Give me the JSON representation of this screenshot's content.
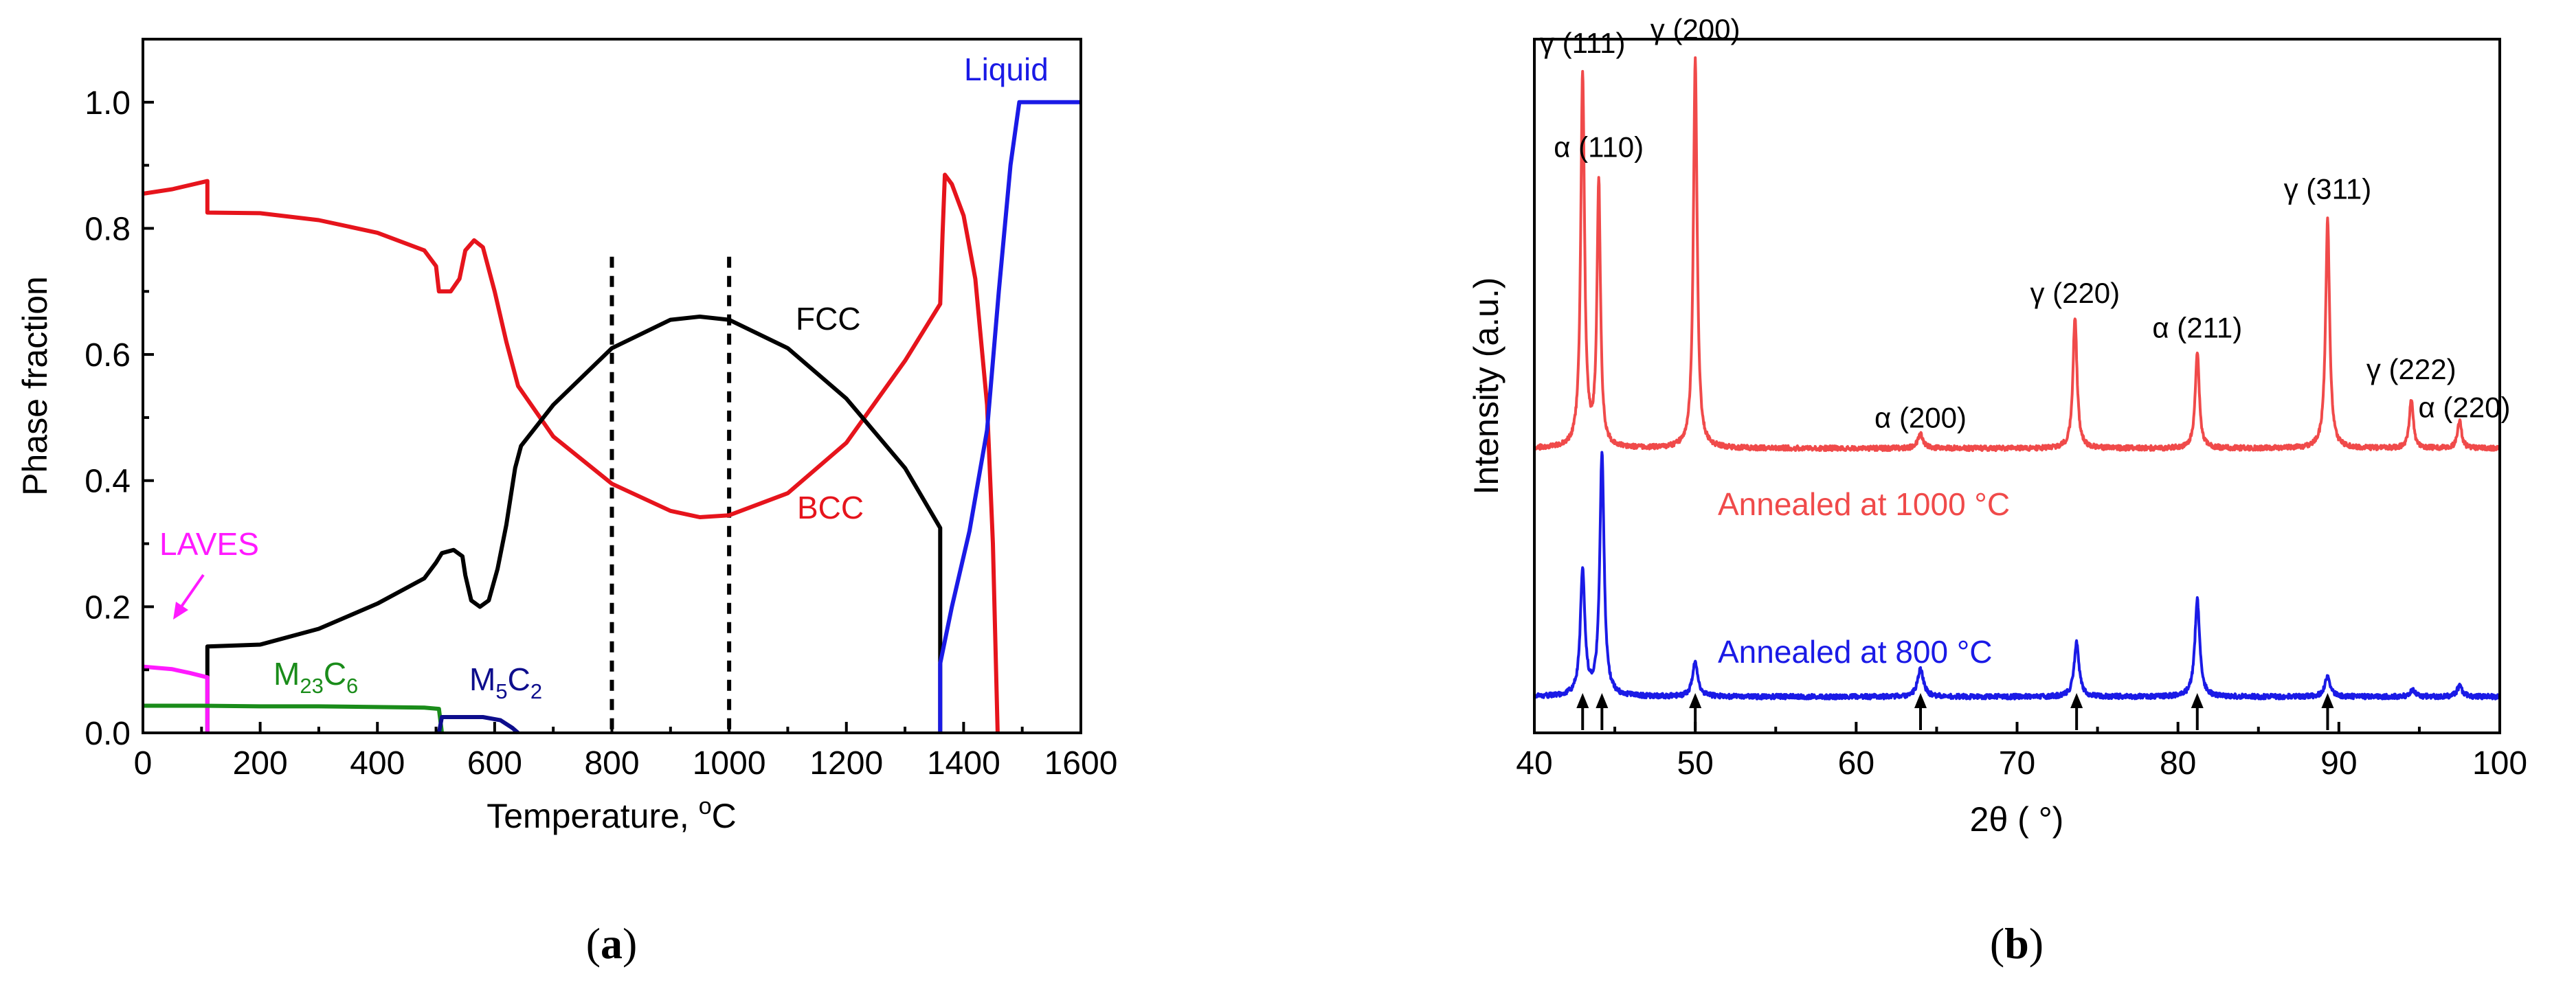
{
  "chart_data": [
    {
      "panel": "(a)",
      "panel_label": {
        "open": "(",
        "letter": "a",
        "close": ")"
      },
      "type": "line",
      "title": "",
      "xlabel": {
        "text": "Temperature, ",
        "sup": "o",
        "after": "C"
      },
      "ylabel": "Phase fraction",
      "xlim": [
        0,
        1600
      ],
      "ylim": [
        0,
        1.1
      ],
      "xticks": [
        0,
        200,
        400,
        600,
        800,
        1000,
        1200,
        1400,
        1600
      ],
      "yticks": [
        "0.0",
        "0.2",
        "0.4",
        "0.6",
        "0.8",
        "1.0"
      ],
      "ytick_values": [
        0,
        0.2,
        0.4,
        0.6,
        0.8,
        1.0
      ],
      "series": [
        {
          "name": "BCC",
          "color": "#e6141c",
          "points": [
            [
              0,
              0.855
            ],
            [
              50,
              0.862
            ],
            [
              110,
              0.875
            ],
            [
              110,
              0.825
            ],
            [
              200,
              0.824
            ],
            [
              300,
              0.813
            ],
            [
              400,
              0.793
            ],
            [
              480,
              0.765
            ],
            [
              500,
              0.74
            ],
            [
              505,
              0.7
            ],
            [
              525,
              0.7
            ],
            [
              540,
              0.72
            ],
            [
              550,
              0.765
            ],
            [
              565,
              0.781
            ],
            [
              580,
              0.77
            ],
            [
              600,
              0.7
            ],
            [
              620,
              0.62
            ],
            [
              640,
              0.55
            ],
            [
              700,
              0.47
            ],
            [
              800,
              0.395
            ],
            [
              900,
              0.352
            ],
            [
              950,
              0.342
            ],
            [
              1000,
              0.345
            ],
            [
              1100,
              0.38
            ],
            [
              1200,
              0.46
            ],
            [
              1300,
              0.59
            ],
            [
              1360,
              0.68
            ],
            [
              1360,
              0.68
            ],
            [
              1364,
              0.79
            ],
            [
              1368,
              0.885
            ],
            [
              1380,
              0.87
            ],
            [
              1400,
              0.82
            ],
            [
              1420,
              0.72
            ],
            [
              1440,
              0.52
            ],
            [
              1450,
              0.3
            ],
            [
              1458,
              0.0
            ]
          ]
        },
        {
          "name": "FCC",
          "color": "#000000",
          "points": [
            [
              110,
              0.0
            ],
            [
              110,
              0.137
            ],
            [
              200,
              0.14
            ],
            [
              300,
              0.165
            ],
            [
              400,
              0.205
            ],
            [
              480,
              0.245
            ],
            [
              500,
              0.27
            ],
            [
              510,
              0.285
            ],
            [
              530,
              0.29
            ],
            [
              545,
              0.28
            ],
            [
              550,
              0.25
            ],
            [
              560,
              0.21
            ],
            [
              575,
              0.2
            ],
            [
              590,
              0.21
            ],
            [
              605,
              0.26
            ],
            [
              620,
              0.33
            ],
            [
              635,
              0.42
            ],
            [
              645,
              0.455
            ],
            [
              700,
              0.52
            ],
            [
              800,
              0.61
            ],
            [
              900,
              0.655
            ],
            [
              950,
              0.66
            ],
            [
              1000,
              0.655
            ],
            [
              1100,
              0.61
            ],
            [
              1200,
              0.53
            ],
            [
              1300,
              0.42
            ],
            [
              1360,
              0.325
            ],
            [
              1360,
              0.0
            ]
          ]
        },
        {
          "name": "Liquid",
          "color": "#1a1ae6",
          "points": [
            [
              1360,
              0.0
            ],
            [
              1360,
              0.11
            ],
            [
              1380,
              0.2
            ],
            [
              1410,
              0.32
            ],
            [
              1440,
              0.48
            ],
            [
              1460,
              0.7
            ],
            [
              1480,
              0.9
            ],
            [
              1495,
              1.0
            ],
            [
              1600,
              1.0
            ]
          ]
        },
        {
          "name": "LAVES",
          "color": "#ff1aff",
          "points": [
            [
              0,
              0.105
            ],
            [
              50,
              0.101
            ],
            [
              80,
              0.095
            ],
            [
              110,
              0.088
            ],
            [
              110,
              0.0
            ]
          ]
        },
        {
          "name": "M23C6",
          "color": "#1a8c1a",
          "points": [
            [
              0,
              0.043
            ],
            [
              100,
              0.043
            ],
            [
              200,
              0.042
            ],
            [
              300,
              0.042
            ],
            [
              400,
              0.041
            ],
            [
              480,
              0.04
            ],
            [
              505,
              0.038
            ],
            [
              510,
              0.0
            ]
          ]
        },
        {
          "name": "M5C2",
          "color": "#0d0d8c",
          "points": [
            [
              505,
              0.0
            ],
            [
              510,
              0.025
            ],
            [
              580,
              0.025
            ],
            [
              610,
              0.02
            ],
            [
              630,
              0.008
            ],
            [
              640,
              0.0
            ]
          ]
        }
      ],
      "vlines": [
        800,
        1000
      ],
      "annotations": {
        "FCC": "FCC",
        "BCC": "BCC",
        "Liquid": "Liquid",
        "LAVES": "LAVES",
        "M23C6": {
          "base": "M",
          "sub": "23",
          "mid": "C",
          "sub2": "6"
        },
        "M5C2": {
          "base": "M",
          "sub": "5",
          "mid": "C",
          "sub2": "2"
        }
      }
    },
    {
      "panel": "(b)",
      "panel_label": {
        "open": "(",
        "letter": "b",
        "close": ")"
      },
      "type": "line",
      "title": "",
      "xlabel": "2θ ( °)",
      "ylabel": "Intensity (a.u.)",
      "xlim": [
        40,
        100
      ],
      "xticks": [
        40,
        50,
        60,
        70,
        80,
        90,
        100
      ],
      "yticks": [],
      "series": [
        {
          "name": "Annealed at 1000 °C",
          "color": "#f04a4a",
          "baseline": 0.41,
          "peaks": [
            [
              43.0,
              0.54,
              0.14
            ],
            [
              44.0,
              0.38,
              0.13
            ],
            [
              50.0,
              0.56,
              0.14
            ],
            [
              64.0,
              0.02,
              0.2
            ],
            [
              73.6,
              0.19,
              0.15
            ],
            [
              81.2,
              0.14,
              0.15
            ],
            [
              89.3,
              0.33,
              0.15
            ],
            [
              94.5,
              0.07,
              0.15
            ],
            [
              97.5,
              0.04,
              0.15
            ]
          ]
        },
        {
          "name": "Annealed at 800 °C",
          "color": "#1a1ae6",
          "baseline": 0.052,
          "peaks": [
            [
              43.0,
              0.18,
              0.17
            ],
            [
              44.2,
              0.35,
              0.16
            ],
            [
              50.0,
              0.05,
              0.2
            ],
            [
              64.0,
              0.04,
              0.22
            ],
            [
              73.7,
              0.08,
              0.18
            ],
            [
              81.2,
              0.14,
              0.18
            ],
            [
              89.3,
              0.03,
              0.2
            ],
            [
              94.6,
              0.01,
              0.2
            ],
            [
              97.5,
              0.015,
              0.2
            ]
          ]
        }
      ],
      "curve_labels": [
        "Annealed at 1000 °C",
        "Annealed at 800 °C"
      ],
      "peak_labels": [
        {
          "text": "γ (111)",
          "x": 43.0,
          "y": 0.98
        },
        {
          "text": "α (110)",
          "x": 44.0,
          "y": 0.83
        },
        {
          "text": "γ (200)",
          "x": 50.0,
          "y": 1.0
        },
        {
          "text": "α (200)",
          "x": 64.0,
          "y": 0.44
        },
        {
          "text": "γ (220)",
          "x": 73.6,
          "y": 0.62
        },
        {
          "text": "α (211)",
          "x": 81.2,
          "y": 0.57
        },
        {
          "text": "γ (311)",
          "x": 89.3,
          "y": 0.77
        },
        {
          "text": "γ (222)",
          "x": 94.5,
          "y": 0.51
        },
        {
          "text": "α (220)",
          "x": 97.8,
          "y": 0.455
        }
      ],
      "arrow_positions": [
        43.0,
        44.2,
        50.0,
        64.0,
        73.7,
        81.2,
        89.3
      ]
    }
  ]
}
